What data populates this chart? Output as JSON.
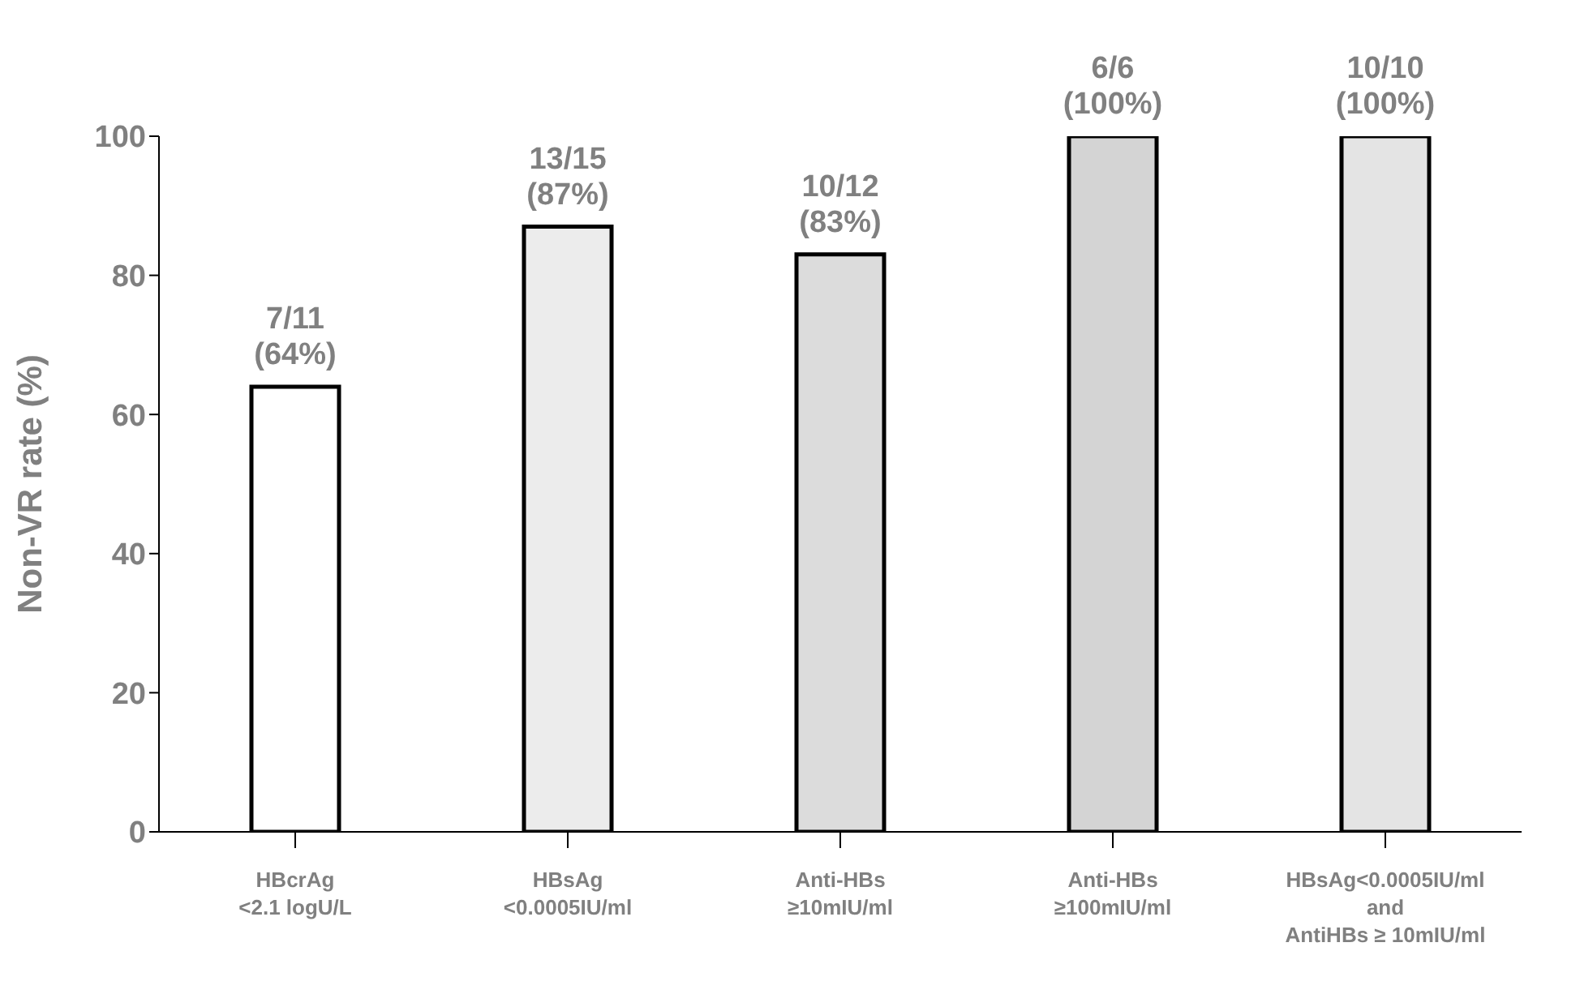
{
  "chart_data": {
    "type": "bar",
    "ylabel": "Non-VR rate (%)",
    "categories": [
      "HBcrAg\n<2.1 logU/L",
      "HBsAg\n<0.0005IU/ml",
      "Anti-HBs\n≥10mIU/ml",
      "Anti-HBs\n≥100mIU/ml",
      "HBsAg<0.0005IU/ml\nand\nAntiHBs ≥ 10mIU/ml"
    ],
    "values": [
      64,
      87,
      83,
      100,
      100
    ],
    "colors": [
      "#ffffff",
      "#ececec",
      "#dcdcdc",
      "#d4d4d4",
      "#e4e4e4"
    ],
    "value_labels": [
      "7/11\n(64%)",
      "13/15\n(87%)",
      "10/12\n(83%)",
      "6/6\n(100%)",
      "10/10\n(100%)"
    ],
    "ylim": [
      0,
      100
    ],
    "yticks": [
      0,
      20,
      40,
      60,
      80,
      100
    ],
    "grid": false,
    "legend": false
  }
}
